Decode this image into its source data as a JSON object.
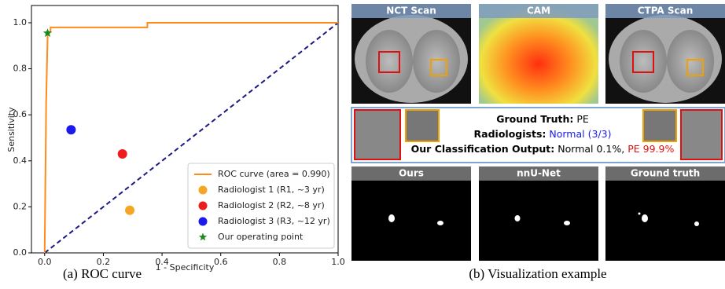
{
  "chart_data": {
    "type": "line",
    "xlabel": "1 - Specificity",
    "ylabel": "Sensitivity",
    "xlim": [
      -0.045,
      1.0
    ],
    "ylim": [
      0,
      1.075
    ],
    "xticks": [
      {
        "value": 0,
        "label": "0.0"
      },
      0.2,
      0.4,
      0.6,
      0.8,
      {
        "value": 1,
        "label": "1.0"
      }
    ],
    "yticks": [
      {
        "value": 0,
        "label": "0.0"
      },
      0.2,
      0.4,
      0.6,
      0.8,
      {
        "value": 1,
        "label": "1.0"
      }
    ],
    "legend": "lower right",
    "series": [
      {
        "name": "ROC curve (area = 0.990)",
        "color": "#ff8c1a",
        "x": [
          0,
          0.005,
          0.005,
          0.01,
          0.01,
          0.02,
          0.02,
          0.35,
          0.35,
          1
        ],
        "values": [
          0,
          0.64,
          0.65,
          0.94,
          0.96,
          0.96,
          0.98,
          0.98,
          1.0,
          1.0
        ]
      }
    ],
    "points": [
      {
        "name": "Radiologist 1 (R1, ~3 yr)",
        "color": "#f5a623",
        "marker": "circle",
        "x": 0.29,
        "y": 0.185
      },
      {
        "name": "Radiologist 2 (R2, ~8 yr)",
        "color": "#ee1c1c",
        "marker": "circle",
        "x": 0.265,
        "y": 0.43
      },
      {
        "name": "Radiologist 3 (R3, ~12 yr)",
        "color": "#1a1aee",
        "marker": "circle",
        "x": 0.09,
        "y": 0.535
      },
      {
        "name": "Our operating point",
        "color": "#1a8a1a",
        "marker": "star",
        "x": 0.01,
        "y": 0.955
      }
    ],
    "caption": "(a)  ROC curve"
  },
  "visualization": {
    "top": [
      "NCT Scan",
      "CAM",
      "CTPA Scan"
    ],
    "ground_truth_label": "Ground Truth:",
    "ground_truth": "PE",
    "radiologists_label": "Radiologists:",
    "radiologists": "Normal (3/3)",
    "output_label": "Our Classification Output:",
    "output_normal": "Normal 0.1%,",
    "output_pe": "PE 99.9%",
    "bottom": [
      "Ours",
      "nnU-Net",
      "Ground truth"
    ],
    "caption": "(b) Visualization example"
  }
}
